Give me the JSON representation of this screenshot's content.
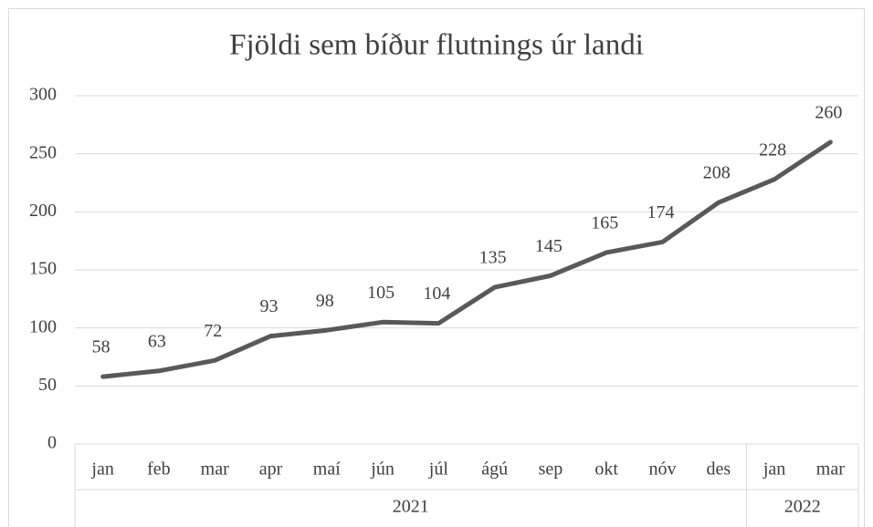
{
  "chart_data": {
    "type": "line",
    "title": "Fjöldi sem bíður flutnings úr landi",
    "groups": [
      {
        "label": "2021",
        "categories": [
          "jan",
          "feb",
          "mar",
          "apr",
          "maí",
          "jún",
          "júl",
          "ágú",
          "sep",
          "okt",
          "nóv",
          "des"
        ]
      },
      {
        "label": "2022",
        "categories": [
          "jan",
          "mar"
        ]
      }
    ],
    "values": [
      58,
      63,
      72,
      93,
      98,
      105,
      104,
      135,
      145,
      165,
      174,
      208,
      228,
      260
    ],
    "color": "#595959",
    "ylim": [
      0,
      300
    ],
    "yticks": [
      0,
      50,
      100,
      150,
      200,
      250,
      300
    ],
    "grid": true,
    "data_labels": true
  }
}
